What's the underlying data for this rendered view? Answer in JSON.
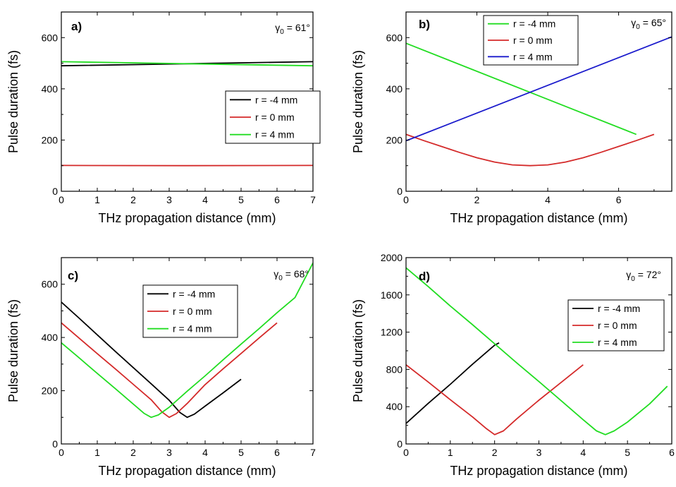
{
  "colors": {
    "black": "#000000",
    "red": "#d42a2a",
    "green": "#22dd22",
    "blue": "#1a1acc"
  },
  "chart_data": [
    {
      "type": "line",
      "panel_label": "a)",
      "gamma": {
        "symbol": "γ",
        "sub": "0",
        "value": " = 61°"
      },
      "xlabel": "THz propagation distance (mm)",
      "ylabel": "Pulse duration (fs)",
      "xlim": [
        0,
        7
      ],
      "ylim": [
        0,
        700
      ],
      "xticks": [
        0,
        1,
        2,
        3,
        4,
        5,
        6,
        7
      ],
      "yticks": [
        0,
        200,
        400,
        600
      ],
      "legend_position": "middle-right",
      "series": [
        {
          "name": "r = -4 mm",
          "color": "#000000",
          "x": [
            0,
            3.5,
            7
          ],
          "y": [
            490,
            498,
            506
          ]
        },
        {
          "name": "r = 0 mm",
          "color": "#d42a2a",
          "x": [
            0,
            3.5,
            7
          ],
          "y": [
            101,
            100,
            101
          ]
        },
        {
          "name": "r = 4 mm",
          "color": "#22dd22",
          "x": [
            0,
            3.5,
            7
          ],
          "y": [
            506,
            498,
            490
          ]
        }
      ]
    },
    {
      "type": "line",
      "panel_label": "b)",
      "gamma": {
        "symbol": "γ",
        "sub": "0",
        "value": " = 65°"
      },
      "xlabel": "THz propagation distance (mm)",
      "ylabel": "Pulse duration (fs)",
      "xlim": [
        0,
        7.5
      ],
      "ylim": [
        0,
        700
      ],
      "xticks": [
        0,
        2,
        4,
        6
      ],
      "yticks": [
        0,
        200,
        400,
        600
      ],
      "legend_position": "top-center",
      "series": [
        {
          "name": "r = -4 mm",
          "color": "#22dd22",
          "x": [
            0,
            6.5
          ],
          "y": [
            578,
            222
          ]
        },
        {
          "name": "r = 0 mm",
          "color": "#d42a2a",
          "x": [
            0,
            0.5,
            1,
            1.5,
            2,
            2.5,
            3,
            3.5,
            4,
            4.5,
            5,
            5.5,
            6,
            6.5,
            7
          ],
          "y": [
            222,
            198,
            175,
            152,
            131,
            114,
            103,
            100,
            103,
            114,
            131,
            152,
            175,
            198,
            222
          ]
        },
        {
          "name": "r = 4 mm",
          "color": "#1a1acc",
          "x": [
            0,
            7.5
          ],
          "y": [
            197,
            603
          ]
        }
      ]
    },
    {
      "type": "line",
      "panel_label": "c)",
      "gamma": {
        "symbol": "γ",
        "sub": "0",
        "value": " = 68°"
      },
      "xlabel": "THz propagation distance (mm)",
      "ylabel": "Pulse duration (fs)",
      "xlim": [
        0,
        7
      ],
      "ylim": [
        0,
        700
      ],
      "xticks": [
        0,
        1,
        2,
        3,
        4,
        5,
        6,
        7
      ],
      "yticks": [
        0,
        200,
        400,
        600
      ],
      "legend_position": "top-center",
      "series": [
        {
          "name": "r = -4 mm",
          "color": "#000000",
          "x": [
            0,
            0.5,
            1,
            1.5,
            2,
            2.5,
            3,
            3.3,
            3.5,
            3.7,
            4,
            4.5,
            5
          ],
          "y": [
            533,
            472,
            410,
            348,
            287,
            226,
            164,
            118,
            100,
            112,
            142,
            192,
            243
          ]
        },
        {
          "name": "r = 0 mm",
          "color": "#d42a2a",
          "x": [
            0,
            0.5,
            1,
            1.5,
            2,
            2.5,
            2.8,
            3,
            3.2,
            3.5,
            4,
            4.5,
            5,
            5.5,
            6
          ],
          "y": [
            455,
            397,
            339,
            282,
            224,
            166,
            120,
            100,
            114,
            152,
            223,
            282,
            340,
            398,
            455
          ]
        },
        {
          "name": "r = 4 mm",
          "color": "#22dd22",
          "x": [
            0,
            0.5,
            1,
            1.5,
            2,
            2.3,
            2.5,
            2.7,
            3,
            3.5,
            4,
            4.5,
            5,
            5.5,
            6,
            6.5,
            7
          ],
          "y": [
            380,
            323,
            265,
            208,
            150,
            115,
            100,
            109,
            138,
            198,
            256,
            316,
            375,
            433,
            493,
            550,
            680
          ]
        }
      ]
    },
    {
      "type": "line",
      "panel_label": "d)",
      "gamma": {
        "symbol": "γ",
        "sub": "0",
        "value": " = 72°"
      },
      "xlabel": "THz propagation distance (mm)",
      "ylabel": "Pulse duration (fs)",
      "xlim": [
        0,
        6
      ],
      "ylim": [
        0,
        2000
      ],
      "xticks": [
        0,
        1,
        2,
        3,
        4,
        5,
        6
      ],
      "yticks": [
        0,
        400,
        800,
        1200,
        1600,
        2000
      ],
      "legend_position": "middle-right",
      "series": [
        {
          "name": "r = -4 mm",
          "color": "#000000",
          "x": [
            0,
            0.5,
            1,
            1.5,
            2,
            2.1
          ],
          "y": [
            220,
            435,
            640,
            855,
            1060,
            1085
          ]
        },
        {
          "name": "r = 0 mm",
          "color": "#d42a2a",
          "x": [
            0,
            0.5,
            1,
            1.5,
            1.8,
            2,
            2.2,
            2.5,
            3,
            3.5,
            4
          ],
          "y": [
            850,
            665,
            475,
            290,
            170,
            100,
            140,
            270,
            470,
            660,
            850
          ]
        },
        {
          "name": "r = 4 mm",
          "color": "#22dd22",
          "x": [
            0,
            0.5,
            1,
            1.5,
            2,
            2.5,
            3,
            3.5,
            4,
            4.3,
            4.5,
            4.7,
            5,
            5.5,
            5.9
          ],
          "y": [
            1890,
            1690,
            1480,
            1280,
            1075,
            870,
            670,
            465,
            260,
            140,
            100,
            140,
            235,
            430,
            620
          ]
        }
      ]
    }
  ]
}
